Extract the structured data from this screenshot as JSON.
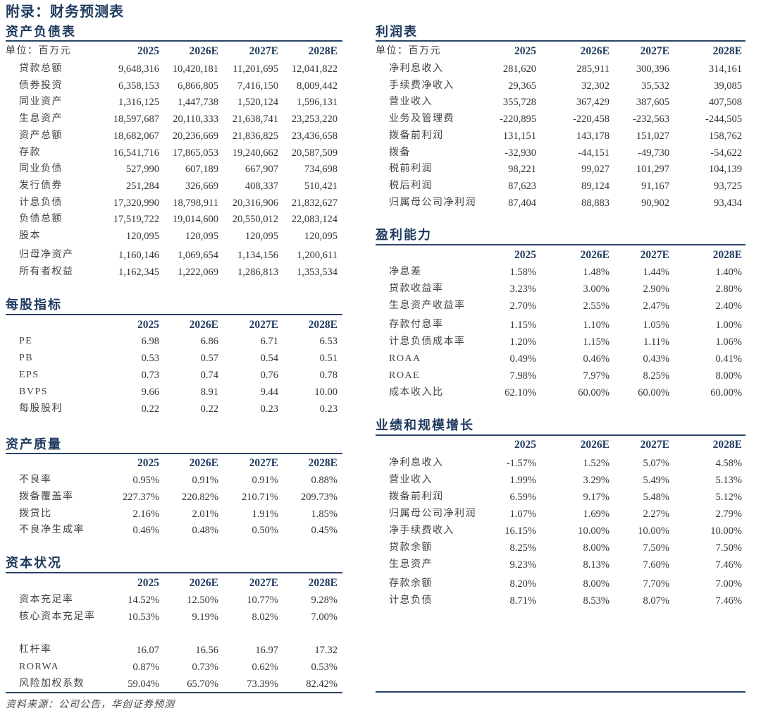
{
  "page_title": "附录：财务预测表",
  "source": "资料来源：公司公告，华创证券预测",
  "colors": {
    "heading": "#1f3a5f",
    "rule": "#2b4466",
    "text": "#333333"
  },
  "sections": [
    {
      "id": "balance",
      "title": "资产负债表",
      "unit": "单位：百万元",
      "columns": [
        "2025",
        "2026E",
        "2027E",
        "2028E"
      ],
      "rows": [
        {
          "label": "贷款总额",
          "values": [
            "9,648,316",
            "10,420,181",
            "11,201,695",
            "12,041,822"
          ]
        },
        {
          "label": "债券投资",
          "values": [
            "6,358,153",
            "6,866,805",
            "7,416,150",
            "8,009,442"
          ]
        },
        {
          "label": "同业资产",
          "values": [
            "1,316,125",
            "1,447,738",
            "1,520,124",
            "1,596,131"
          ]
        },
        {
          "label": "生息资产",
          "values": [
            "18,597,687",
            "20,110,333",
            "21,638,741",
            "23,253,220"
          ]
        },
        {
          "label": "资产总额",
          "values": [
            "18,682,067",
            "20,236,669",
            "21,836,825",
            "23,436,658"
          ]
        },
        {
          "label": "存款",
          "values": [
            "16,541,716",
            "17,865,053",
            "19,240,662",
            "20,587,509"
          ]
        },
        {
          "label": "同业负债",
          "values": [
            "527,990",
            "607,189",
            "667,907",
            "734,698"
          ]
        },
        {
          "label": "发行债券",
          "values": [
            "251,284",
            "326,669",
            "408,337",
            "510,421"
          ]
        },
        {
          "label": "计息负债",
          "values": [
            "17,320,990",
            "18,798,911",
            "20,316,906",
            "21,832,627"
          ]
        },
        {
          "label": "负债总额",
          "values": [
            "17,519,722",
            "19,014,600",
            "20,550,012",
            "22,083,124"
          ]
        },
        {
          "label": "股本",
          "values": [
            "120,095",
            "120,095",
            "120,095",
            "120,095"
          ]
        },
        {
          "label": "归母净资产",
          "values": [
            "1,160,146",
            "1,069,654",
            "1,134,156",
            "1,200,611"
          ]
        },
        {
          "label": "所有者权益",
          "values": [
            "1,162,345",
            "1,222,069",
            "1,286,813",
            "1,353,534"
          ]
        }
      ]
    },
    {
      "id": "pershare",
      "title": "每股指标",
      "unit": "",
      "columns": [
        "2025",
        "2026E",
        "2027E",
        "2028E"
      ],
      "rows": [
        {
          "label": "PE",
          "values": [
            "6.98",
            "6.86",
            "6.71",
            "6.53"
          ]
        },
        {
          "label": "PB",
          "values": [
            "0.53",
            "0.57",
            "0.54",
            "0.51"
          ]
        },
        {
          "label": "EPS",
          "values": [
            "0.73",
            "0.74",
            "0.76",
            "0.78"
          ]
        },
        {
          "label": "BVPS",
          "values": [
            "9.66",
            "8.91",
            "9.44",
            "10.00"
          ]
        },
        {
          "label": "每股股利",
          "values": [
            "0.22",
            "0.22",
            "0.23",
            "0.23"
          ]
        }
      ]
    },
    {
      "id": "quality",
      "title": "资产质量",
      "unit": "",
      "columns": [
        "2025",
        "2026E",
        "2027E",
        "2028E"
      ],
      "rows": [
        {
          "label": "不良率",
          "values": [
            "0.95%",
            "0.91%",
            "0.91%",
            "0.88%"
          ]
        },
        {
          "label": "拨备覆盖率",
          "values": [
            "227.37%",
            "220.82%",
            "210.71%",
            "209.73%"
          ]
        },
        {
          "label": "拨贷比",
          "values": [
            "2.16%",
            "2.01%",
            "1.91%",
            "1.85%"
          ]
        },
        {
          "label": "不良净生成率",
          "values": [
            "0.46%",
            "0.48%",
            "0.50%",
            "0.45%"
          ]
        }
      ]
    },
    {
      "id": "capital",
      "title": "资本状况",
      "unit": "",
      "columns": [
        "2025",
        "2026E",
        "2027E",
        "2028E"
      ],
      "rows": [
        {
          "label": "资本充足率",
          "values": [
            "14.52%",
            "12.50%",
            "10.77%",
            "9.28%"
          ]
        },
        {
          "label": "核心资本充足率",
          "values": [
            "10.53%",
            "9.19%",
            "8.02%",
            "7.00%"
          ]
        },
        {
          "label": "杠杆率",
          "values": [
            "16.07",
            "16.56",
            "16.97",
            "17.32"
          ]
        },
        {
          "label": "RORWA",
          "values": [
            "0.87%",
            "0.73%",
            "0.62%",
            "0.53%"
          ]
        },
        {
          "label": "风险加权系数",
          "values": [
            "59.04%",
            "65.70%",
            "73.39%",
            "82.42%"
          ]
        }
      ]
    },
    {
      "id": "income",
      "title": "利润表",
      "unit": "单位：百万元",
      "columns": [
        "2025",
        "2026E",
        "2027E",
        "2028E"
      ],
      "rows": [
        {
          "label": "净利息收入",
          "values": [
            "281,620",
            "285,911",
            "300,396",
            "314,161"
          ]
        },
        {
          "label": "手续费净收入",
          "values": [
            "29,365",
            "32,302",
            "35,532",
            "39,085"
          ]
        },
        {
          "label": "营业收入",
          "values": [
            "355,728",
            "367,429",
            "387,605",
            "407,508"
          ]
        },
        {
          "label": "业务及管理费",
          "values": [
            "-220,895",
            "-220,458",
            "-232,563",
            "-244,505"
          ]
        },
        {
          "label": "拨备前利润",
          "values": [
            "131,151",
            "143,178",
            "151,027",
            "158,762"
          ]
        },
        {
          "label": "拨备",
          "values": [
            "-32,930",
            "-44,151",
            "-49,730",
            "-54,622"
          ]
        },
        {
          "label": "税前利润",
          "values": [
            "98,221",
            "99,027",
            "101,297",
            "104,139"
          ]
        },
        {
          "label": "税后利润",
          "values": [
            "87,623",
            "89,124",
            "91,167",
            "93,725"
          ]
        },
        {
          "label": "归属母公司净利润",
          "values": [
            "87,404",
            "88,883",
            "90,902",
            "93,434"
          ]
        }
      ]
    },
    {
      "id": "profit",
      "title": "盈利能力",
      "unit": "",
      "columns": [
        "2025",
        "2026E",
        "2027E",
        "2028E"
      ],
      "rows": [
        {
          "label": "净息差",
          "values": [
            "1.58%",
            "1.48%",
            "1.44%",
            "1.40%"
          ]
        },
        {
          "label": "贷款收益率",
          "values": [
            "3.23%",
            "3.00%",
            "2.90%",
            "2.80%"
          ]
        },
        {
          "label": "生息资产收益率",
          "values": [
            "2.70%",
            "2.55%",
            "2.47%",
            "2.40%"
          ]
        },
        {
          "label": "存款付息率",
          "values": [
            "1.15%",
            "1.10%",
            "1.05%",
            "1.00%"
          ]
        },
        {
          "label": "计息负债成本率",
          "values": [
            "1.20%",
            "1.15%",
            "1.11%",
            "1.06%"
          ]
        },
        {
          "label": "ROAA",
          "values": [
            "0.49%",
            "0.46%",
            "0.43%",
            "0.41%"
          ]
        },
        {
          "label": "ROAE",
          "values": [
            "7.98%",
            "7.97%",
            "8.25%",
            "8.00%"
          ]
        },
        {
          "label": "成本收入比",
          "values": [
            "62.10%",
            "60.00%",
            "60.00%",
            "60.00%"
          ]
        }
      ]
    },
    {
      "id": "growth",
      "title": "业绩和规模增长",
      "unit": "",
      "columns": [
        "2025",
        "2026E",
        "2027E",
        "2028E"
      ],
      "rows": [
        {
          "label": "净利息收入",
          "values": [
            "-1.57%",
            "1.52%",
            "5.07%",
            "4.58%"
          ]
        },
        {
          "label": "营业收入",
          "values": [
            "1.99%",
            "3.29%",
            "5.49%",
            "5.13%"
          ]
        },
        {
          "label": "拨备前利润",
          "values": [
            "6.59%",
            "9.17%",
            "5.48%",
            "5.12%"
          ]
        },
        {
          "label": "归属母公司净利润",
          "values": [
            "1.07%",
            "1.69%",
            "2.27%",
            "2.79%"
          ]
        },
        {
          "label": "净手续费收入",
          "values": [
            "16.15%",
            "10.00%",
            "10.00%",
            "10.00%"
          ]
        },
        {
          "label": "贷款余额",
          "values": [
            "8.25%",
            "8.00%",
            "7.50%",
            "7.50%"
          ]
        },
        {
          "label": "生息资产",
          "values": [
            "9.23%",
            "8.13%",
            "7.60%",
            "7.46%"
          ]
        },
        {
          "label": "存款余额",
          "values": [
            "8.20%",
            "8.00%",
            "7.70%",
            "7.00%"
          ]
        },
        {
          "label": "计息负债",
          "values": [
            "8.71%",
            "8.53%",
            "8.07%",
            "7.46%"
          ]
        }
      ]
    }
  ]
}
